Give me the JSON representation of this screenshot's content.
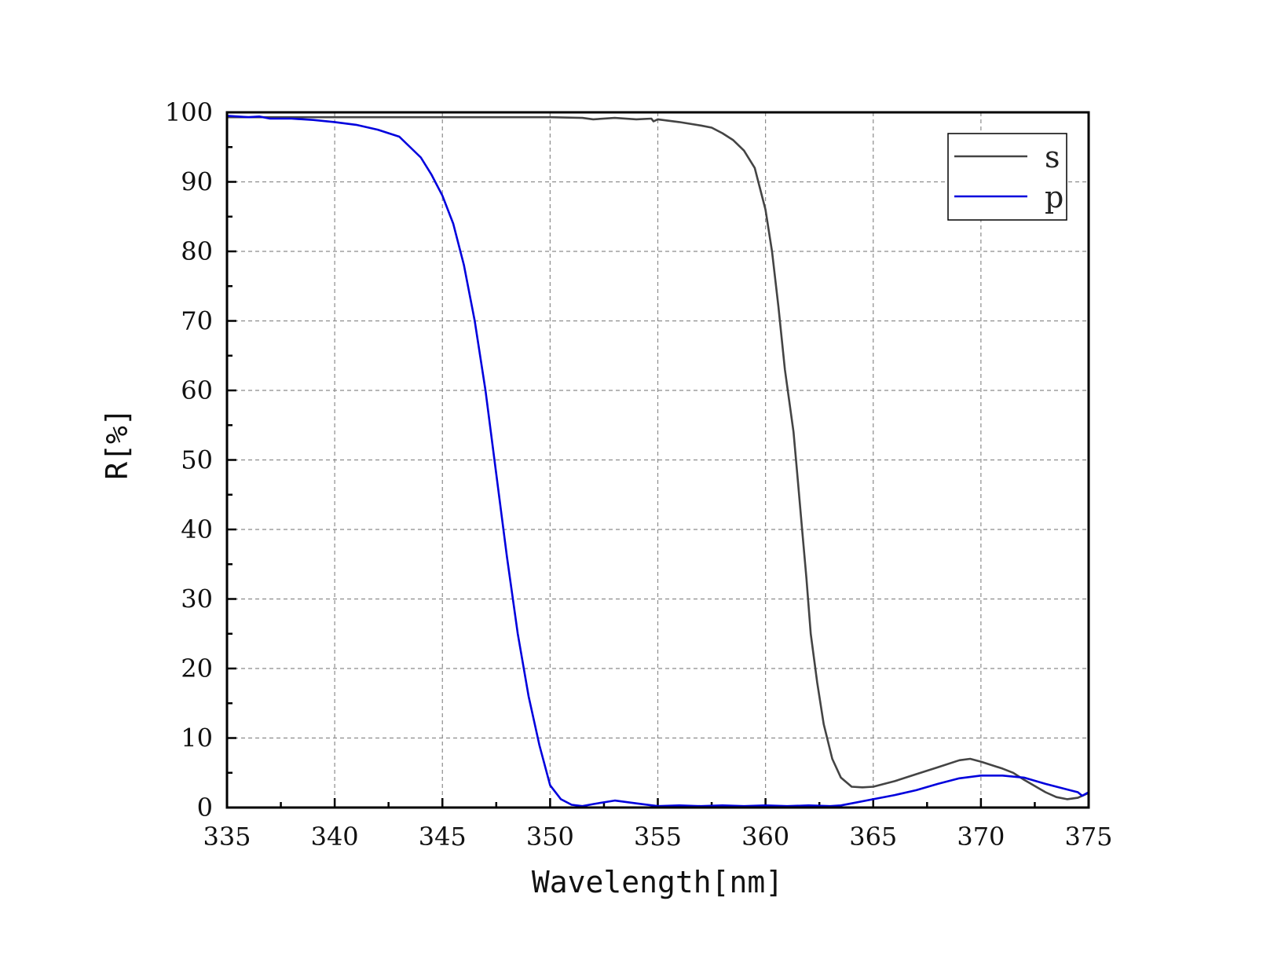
{
  "chart_data": {
    "type": "line",
    "xlabel": "Wavelength[nm]",
    "ylabel": "R[%]",
    "xlim": [
      335,
      375
    ],
    "ylim": [
      0,
      100
    ],
    "x_ticks": [
      335,
      340,
      345,
      350,
      355,
      360,
      365,
      370,
      375
    ],
    "y_ticks": [
      0,
      10,
      20,
      30,
      40,
      50,
      60,
      70,
      80,
      90,
      100
    ],
    "x_tick_labels": [
      "335",
      "340",
      "345",
      "350",
      "355",
      "360",
      "365",
      "370",
      "375"
    ],
    "y_tick_labels": [
      "0",
      "10",
      "20",
      "30",
      "40",
      "50",
      "60",
      "70",
      "80",
      "90",
      "100"
    ],
    "grid": true,
    "legend_position": "top-right",
    "series": [
      {
        "name": "s",
        "color": "#444444",
        "points": [
          [
            335,
            99.3
          ],
          [
            337,
            99.3
          ],
          [
            340,
            99.3
          ],
          [
            345,
            99.3
          ],
          [
            350,
            99.3
          ],
          [
            351.5,
            99.2
          ],
          [
            352,
            99.0
          ],
          [
            353,
            99.2
          ],
          [
            354,
            99.0
          ],
          [
            354.7,
            99.1
          ],
          [
            354.8,
            98.7
          ],
          [
            355,
            99.0
          ],
          [
            356,
            98.6
          ],
          [
            357,
            98.1
          ],
          [
            357.5,
            97.8
          ],
          [
            358,
            97.0
          ],
          [
            358.5,
            96.0
          ],
          [
            359,
            94.5
          ],
          [
            359.5,
            92.0
          ],
          [
            360,
            86.0
          ],
          [
            360.3,
            80.0
          ],
          [
            360.6,
            72.0
          ],
          [
            360.9,
            63.0
          ],
          [
            361.1,
            58.5
          ],
          [
            361.3,
            54.0
          ],
          [
            361.5,
            47.0
          ],
          [
            361.7,
            40.0
          ],
          [
            361.9,
            33.0
          ],
          [
            362.1,
            25.0
          ],
          [
            362.4,
            18.0
          ],
          [
            362.7,
            12.0
          ],
          [
            363.1,
            7.0
          ],
          [
            363.5,
            4.3
          ],
          [
            364,
            3.0
          ],
          [
            364.5,
            2.9
          ],
          [
            365,
            3.0
          ],
          [
            366,
            3.8
          ],
          [
            367,
            4.8
          ],
          [
            368,
            5.8
          ],
          [
            369,
            6.8
          ],
          [
            369.5,
            7.0
          ],
          [
            370,
            6.6
          ],
          [
            371,
            5.6
          ],
          [
            371.5,
            5.0
          ],
          [
            372,
            4.0
          ],
          [
            373,
            2.2
          ],
          [
            373.5,
            1.5
          ],
          [
            374,
            1.2
          ],
          [
            374.5,
            1.4
          ],
          [
            375,
            2.1
          ]
        ]
      },
      {
        "name": "p",
        "color": "#0000dd",
        "points": [
          [
            335,
            99.5
          ],
          [
            336,
            99.3
          ],
          [
            336.5,
            99.4
          ],
          [
            337,
            99.1
          ],
          [
            338,
            99.1
          ],
          [
            339,
            98.9
          ],
          [
            340,
            98.6
          ],
          [
            341,
            98.2
          ],
          [
            342,
            97.5
          ],
          [
            343,
            96.5
          ],
          [
            344,
            93.5
          ],
          [
            344.5,
            91.0
          ],
          [
            345,
            88.0
          ],
          [
            345.5,
            84.0
          ],
          [
            346,
            78.0
          ],
          [
            346.5,
            70.0
          ],
          [
            347,
            60.0
          ],
          [
            347.5,
            48.0
          ],
          [
            348,
            36.0
          ],
          [
            348.5,
            25.0
          ],
          [
            349,
            16.0
          ],
          [
            349.5,
            9.0
          ],
          [
            350,
            3.2
          ],
          [
            350.5,
            1.2
          ],
          [
            351,
            0.4
          ],
          [
            351.5,
            0.2
          ],
          [
            352,
            0.5
          ],
          [
            353,
            1.0
          ],
          [
            354,
            0.6
          ],
          [
            355,
            0.2
          ],
          [
            356,
            0.3
          ],
          [
            357,
            0.2
          ],
          [
            358,
            0.3
          ],
          [
            359,
            0.2
          ],
          [
            360,
            0.3
          ],
          [
            361,
            0.2
          ],
          [
            362,
            0.3
          ],
          [
            363,
            0.2
          ],
          [
            363.5,
            0.3
          ],
          [
            364,
            0.6
          ],
          [
            365,
            1.2
          ],
          [
            366,
            1.8
          ],
          [
            367,
            2.5
          ],
          [
            368,
            3.4
          ],
          [
            369,
            4.2
          ],
          [
            370,
            4.6
          ],
          [
            371,
            4.6
          ],
          [
            372,
            4.3
          ],
          [
            373,
            3.4
          ],
          [
            374,
            2.6
          ],
          [
            374.5,
            2.2
          ],
          [
            374.7,
            1.7
          ],
          [
            375,
            2.2
          ]
        ]
      }
    ]
  }
}
